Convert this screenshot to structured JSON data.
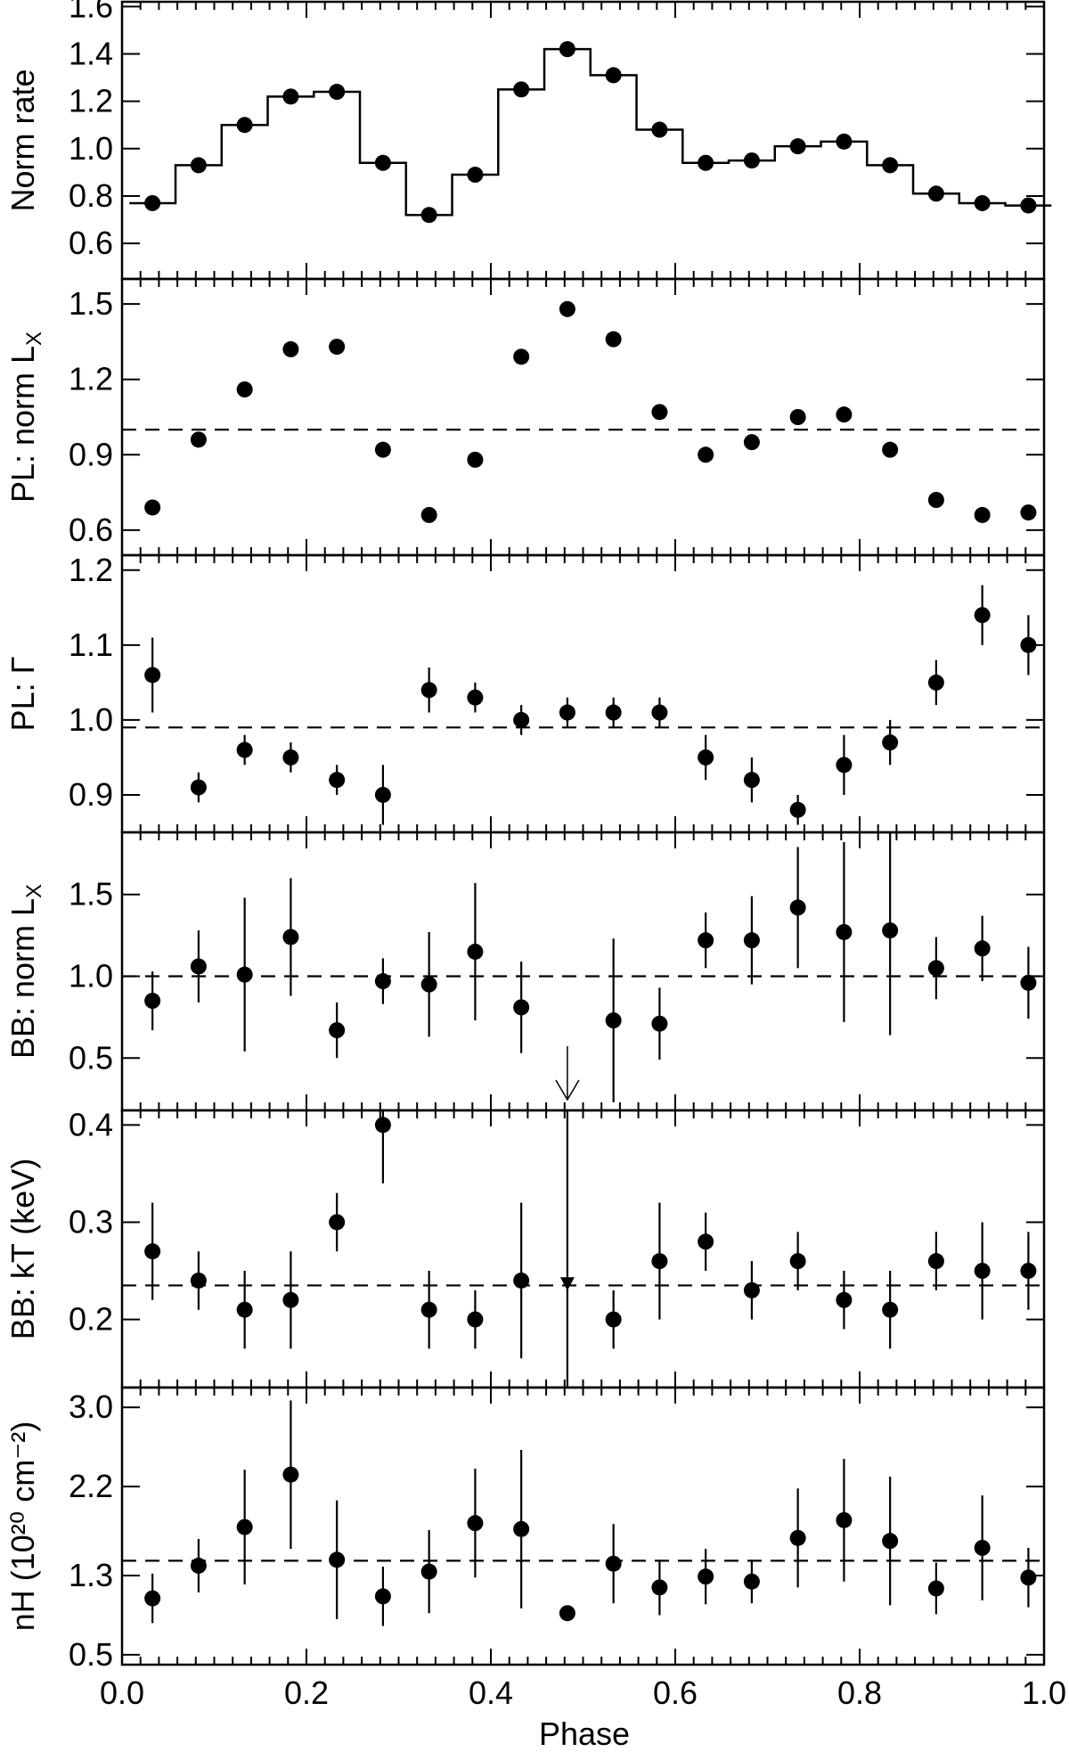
{
  "chart_data": [
    {
      "type": "scatter",
      "panel": "norm-rate",
      "ylabel": "Norm rate",
      "ylim": [
        0.45,
        1.62
      ],
      "yticks": [
        0.6,
        0.8,
        1.0,
        1.2,
        1.4,
        1.6
      ],
      "ytick_labels": [
        "0.6",
        "0.8",
        "1.0",
        "1.2",
        "1.4",
        "1.6"
      ],
      "histogram": true,
      "x": [
        0.033,
        0.083,
        0.133,
        0.183,
        0.233,
        0.283,
        0.333,
        0.383,
        0.433,
        0.483,
        0.533,
        0.583,
        0.633,
        0.683,
        0.733,
        0.783,
        0.833,
        0.883,
        0.933,
        0.983
      ],
      "y": [
        0.77,
        0.93,
        1.1,
        1.22,
        1.24,
        0.94,
        0.72,
        0.89,
        1.25,
        1.42,
        1.31,
        1.08,
        0.94,
        0.95,
        1.01,
        1.03,
        0.93,
        0.81,
        0.77,
        0.76
      ]
    },
    {
      "type": "scatter",
      "panel": "pl-norm",
      "ylabel_main": "PL: norm L",
      "ylabel_sub": "X",
      "ylim": [
        0.5,
        1.6
      ],
      "yticks": [
        0.6,
        0.9,
        1.2,
        1.5
      ],
      "ytick_labels": [
        "0.6",
        "0.9",
        "1.2",
        "1.5"
      ],
      "reference_line": 1.0,
      "x": [
        0.033,
        0.083,
        0.133,
        0.183,
        0.233,
        0.283,
        0.333,
        0.383,
        0.433,
        0.483,
        0.533,
        0.583,
        0.633,
        0.683,
        0.733,
        0.783,
        0.833,
        0.883,
        0.933,
        0.983
      ],
      "y": [
        0.69,
        0.96,
        1.16,
        1.32,
        1.33,
        0.92,
        0.66,
        0.88,
        1.29,
        1.48,
        1.36,
        1.07,
        0.9,
        0.95,
        1.05,
        1.06,
        0.92,
        0.72,
        0.66,
        0.67
      ]
    },
    {
      "type": "scatter",
      "panel": "pl-gamma",
      "ylabel": "PL: Γ",
      "ylim": [
        0.85,
        1.22
      ],
      "yticks": [
        0.9,
        1.0,
        1.1,
        1.2
      ],
      "ytick_labels": [
        "0.9",
        "1.0",
        "1.1",
        "1.2"
      ],
      "reference_line": 0.99,
      "x": [
        0.033,
        0.083,
        0.133,
        0.183,
        0.233,
        0.283,
        0.333,
        0.383,
        0.433,
        0.483,
        0.533,
        0.583,
        0.633,
        0.683,
        0.733,
        0.783,
        0.833,
        0.883,
        0.933,
        0.983
      ],
      "y": [
        1.06,
        0.91,
        0.96,
        0.95,
        0.92,
        0.9,
        1.04,
        1.03,
        1.0,
        1.01,
        1.01,
        1.01,
        0.95,
        0.92,
        0.88,
        0.94,
        0.97,
        1.05,
        1.14,
        1.1
      ],
      "yerr": [
        0.05,
        0.02,
        0.02,
        0.02,
        0.02,
        0.04,
        0.03,
        0.02,
        0.02,
        0.02,
        0.02,
        0.02,
        0.03,
        0.03,
        0.02,
        0.04,
        0.03,
        0.03,
        0.04,
        0.04
      ]
    },
    {
      "type": "scatter",
      "panel": "bb-norm",
      "ylabel_main": "BB: norm L",
      "ylabel_sub": "X",
      "ylim": [
        0.18,
        1.88
      ],
      "yticks": [
        0.5,
        1.0,
        1.5
      ],
      "ytick_labels": [
        "0.5",
        "1.0",
        "1.5"
      ],
      "reference_line": 1.0,
      "x": [
        0.033,
        0.083,
        0.133,
        0.183,
        0.233,
        0.283,
        0.333,
        0.383,
        0.433,
        0.533,
        0.583,
        0.633,
        0.683,
        0.733,
        0.783,
        0.833,
        0.883,
        0.933,
        0.983
      ],
      "y": [
        0.85,
        1.06,
        1.01,
        1.24,
        0.67,
        0.97,
        0.95,
        1.15,
        0.81,
        0.73,
        0.71,
        1.22,
        1.22,
        1.42,
        1.27,
        1.28,
        1.05,
        1.17,
        0.96
      ],
      "yerr": [
        0.18,
        0.22,
        0.47,
        0.36,
        0.17,
        0.14,
        0.32,
        0.42,
        0.28,
        0.5,
        0.22,
        0.17,
        0.27,
        0.37,
        0.55,
        0.64,
        0.19,
        0.2,
        0.22
      ],
      "upper_limit": {
        "x": 0.483
      }
    },
    {
      "type": "scatter",
      "panel": "bb-kt",
      "ylabel": "BB: kT (keV)",
      "ylim": [
        0.13,
        0.415
      ],
      "yticks": [
        0.2,
        0.3,
        0.4
      ],
      "ytick_labels": [
        "0.2",
        "0.3",
        "0.4"
      ],
      "reference_line": 0.235,
      "x": [
        0.033,
        0.083,
        0.133,
        0.183,
        0.233,
        0.283,
        0.333,
        0.383,
        0.433,
        0.533,
        0.583,
        0.633,
        0.683,
        0.733,
        0.783,
        0.833,
        0.883,
        0.933,
        0.983
      ],
      "y": [
        0.27,
        0.24,
        0.21,
        0.22,
        0.3,
        0.4,
        0.21,
        0.2,
        0.24,
        0.2,
        0.26,
        0.28,
        0.23,
        0.26,
        0.22,
        0.21,
        0.26,
        0.25,
        0.25
      ],
      "yerr": [
        0.05,
        0.03,
        0.04,
        0.05,
        0.03,
        0.06,
        0.04,
        0.03,
        0.08,
        0.03,
        0.06,
        0.03,
        0.03,
        0.03,
        0.03,
        0.04,
        0.03,
        0.05,
        0.04
      ],
      "triangle_point": {
        "x": 0.483,
        "y": 0.237
      }
    },
    {
      "type": "scatter",
      "panel": "nh",
      "ylabel": "nH (10²⁰ cm⁻²)",
      "ylim": [
        0.4,
        3.2
      ],
      "yticks": [
        0.5,
        1.3,
        2.2,
        3.0
      ],
      "ytick_labels": [
        "0.5",
        "1.3",
        "2.2",
        "3.0"
      ],
      "reference_line": 1.45,
      "x": [
        0.033,
        0.083,
        0.133,
        0.183,
        0.233,
        0.283,
        0.333,
        0.383,
        0.433,
        0.483,
        0.533,
        0.583,
        0.633,
        0.683,
        0.733,
        0.783,
        0.833,
        0.883,
        0.933,
        0.983
      ],
      "y": [
        1.07,
        1.4,
        1.79,
        2.32,
        1.46,
        1.09,
        1.34,
        1.83,
        1.77,
        0.92,
        1.42,
        1.18,
        1.29,
        1.24,
        1.68,
        1.86,
        1.65,
        1.17,
        1.58,
        1.28
      ],
      "yerr": [
        0.25,
        0.27,
        0.58,
        0.75,
        0.6,
        0.3,
        0.42,
        0.55,
        0.8,
        0.06,
        0.4,
        0.28,
        0.28,
        0.22,
        0.5,
        0.62,
        0.65,
        0.26,
        0.53,
        0.3
      ]
    }
  ],
  "xaxis": {
    "label": "Phase",
    "xlim": [
      0.0,
      1.0
    ],
    "ticks": [
      0.0,
      0.2,
      0.4,
      0.6,
      0.8,
      1.0
    ],
    "tick_labels": [
      "0.0",
      "0.2",
      "0.4",
      "0.6",
      "0.8",
      "1.0"
    ]
  }
}
